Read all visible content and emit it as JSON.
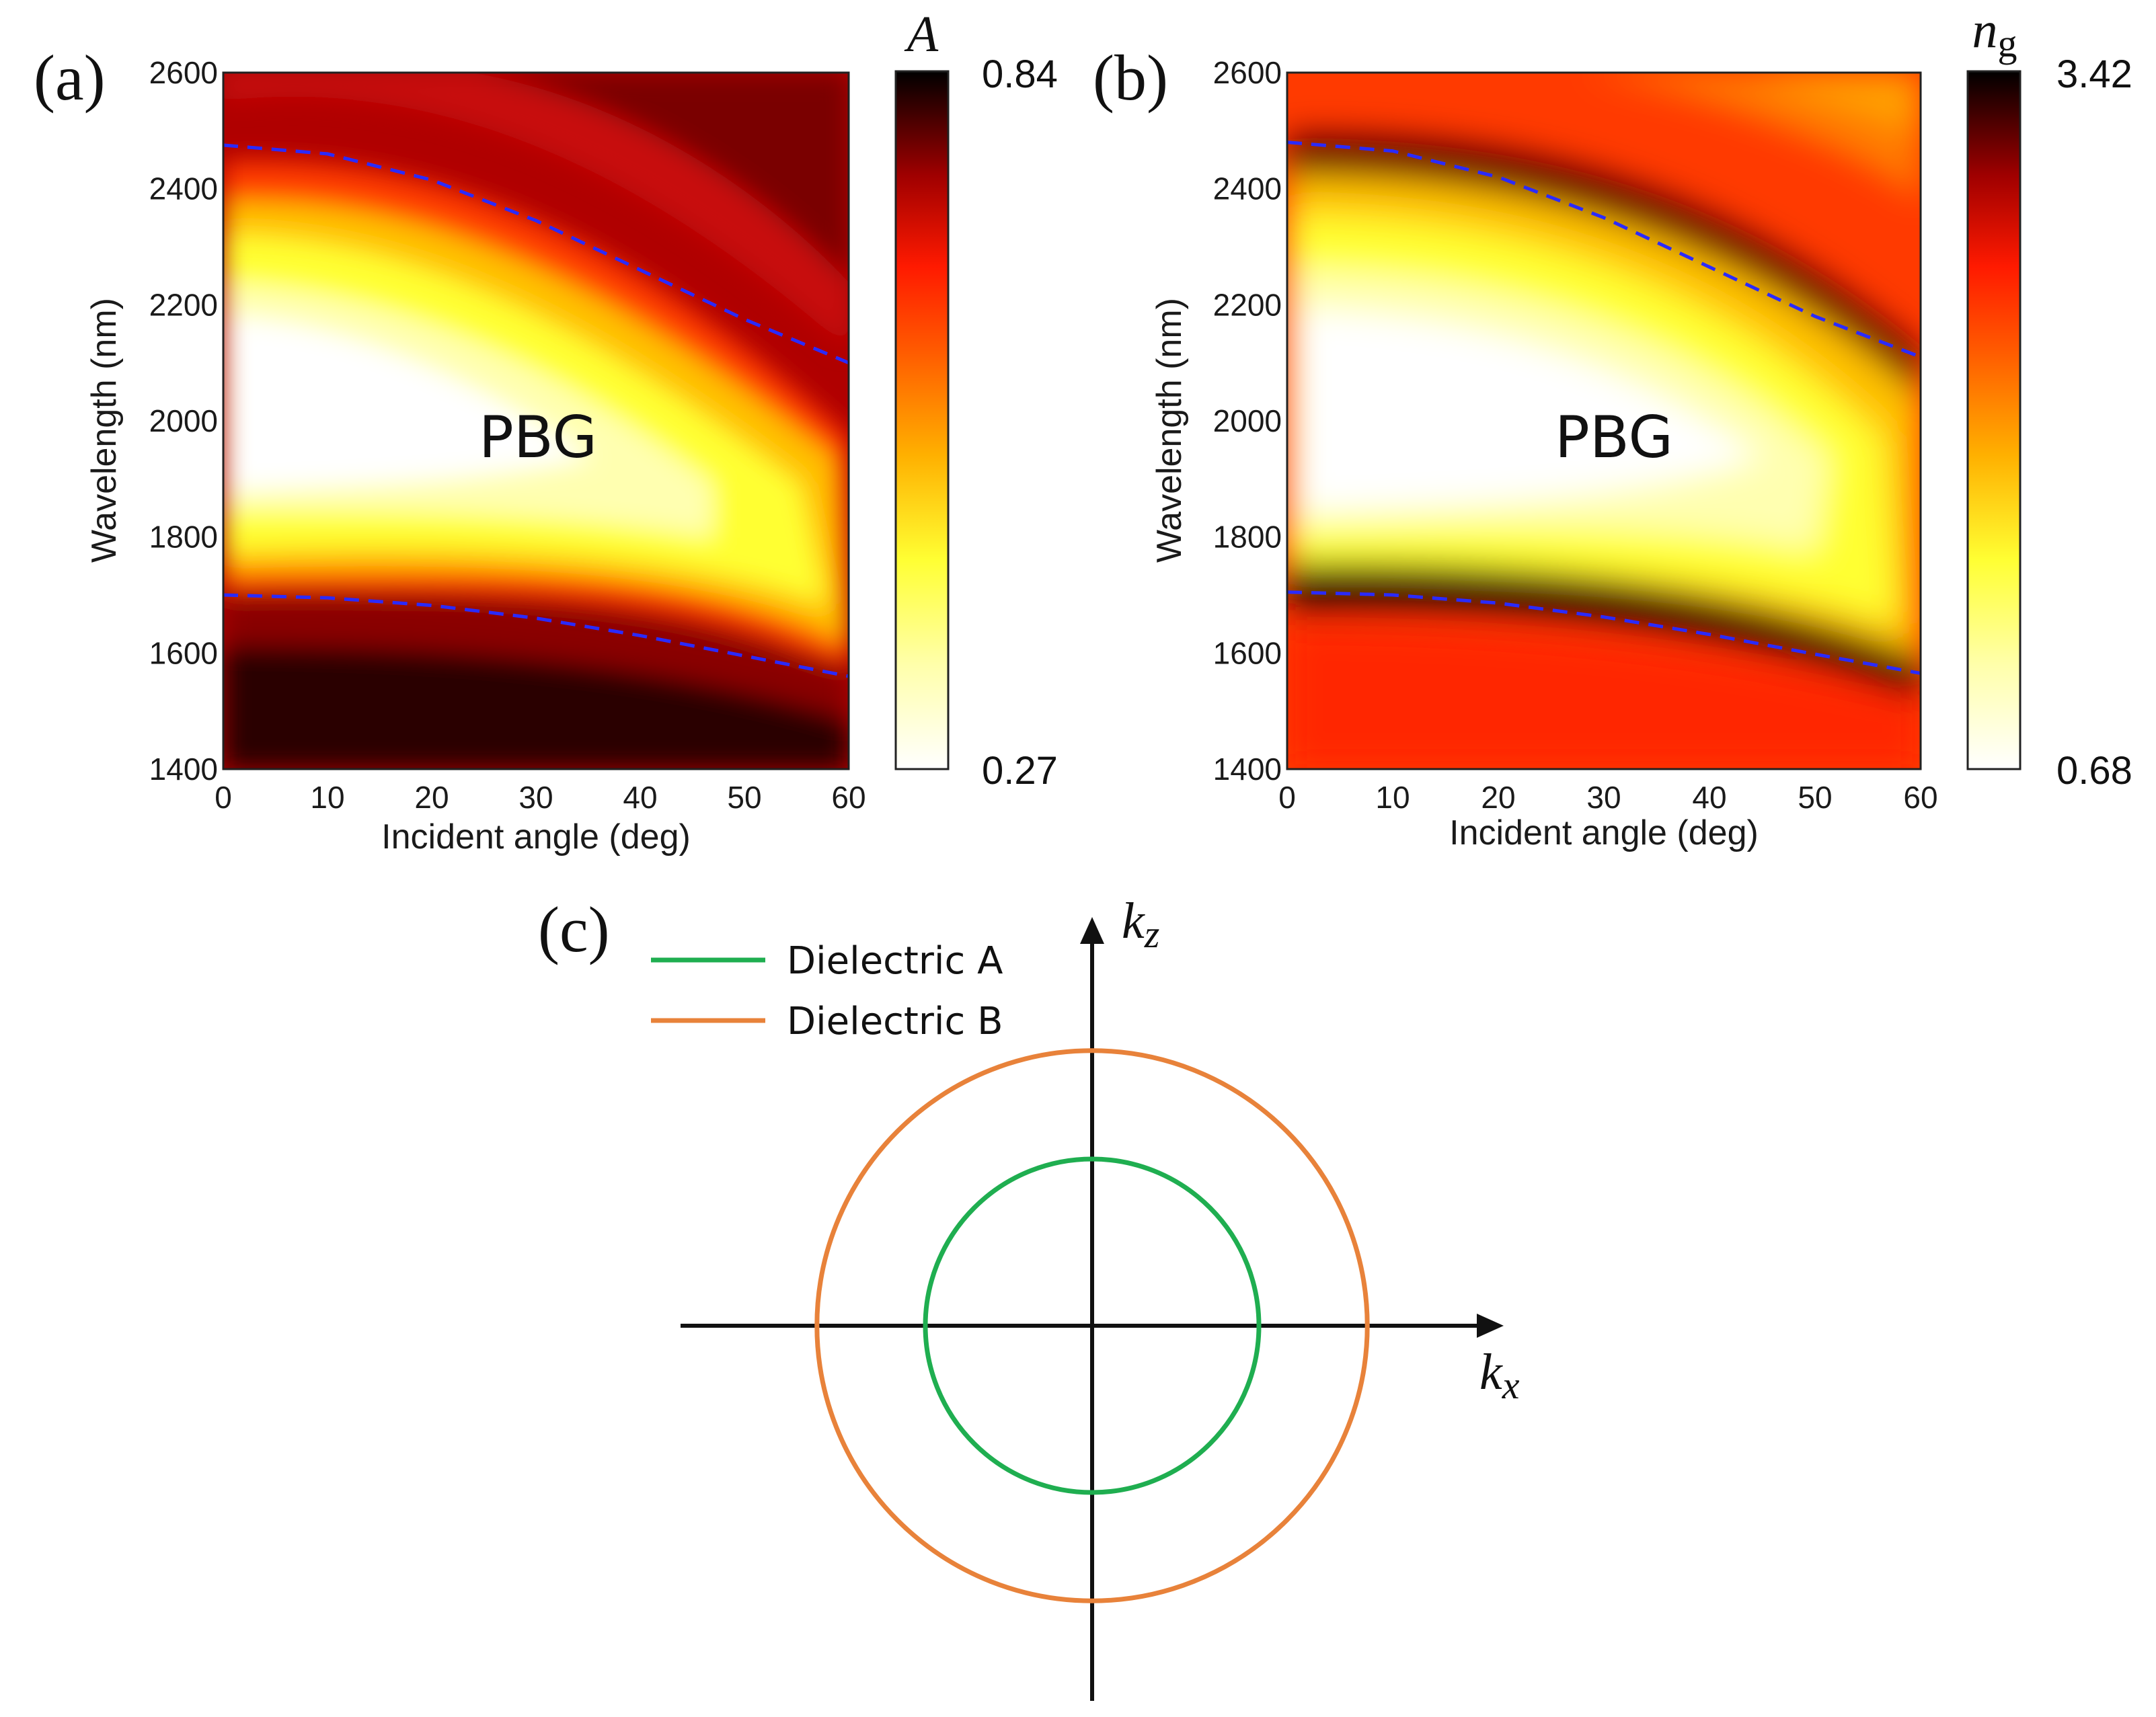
{
  "chart_data": [
    {
      "panel": "(a)",
      "type": "heatmap",
      "title": "",
      "xlabel": "Incident angle (deg)",
      "ylabel": "Wavelength (nm)",
      "xlim": [
        0,
        60
      ],
      "ylim": [
        1400,
        2600
      ],
      "xticks": [
        0,
        10,
        20,
        30,
        40,
        50,
        60
      ],
      "yticks": [
        1400,
        1600,
        1800,
        2000,
        2200,
        2400,
        2600
      ],
      "colorbar": {
        "title": "A",
        "min": 0.27,
        "max": 0.84,
        "min_label": "0.27",
        "max_label": "0.84",
        "colormap": "hot_r"
      },
      "annotation": "PBG",
      "band_edges": [
        {
          "name": "upper band edge",
          "style": "blue-dashed",
          "x": [
            0,
            10,
            20,
            30,
            40,
            50,
            60
          ],
          "y": [
            2475,
            2460,
            2415,
            2345,
            2260,
            2175,
            2100
          ]
        },
        {
          "name": "lower band edge",
          "style": "blue-dashed",
          "x": [
            0,
            10,
            20,
            30,
            40,
            50,
            60
          ],
          "y": [
            1700,
            1695,
            1682,
            1660,
            1630,
            1595,
            1560
          ]
        }
      ]
    },
    {
      "panel": "(b)",
      "type": "heatmap",
      "title": "",
      "xlabel": "Incident angle (deg)",
      "ylabel": "Wavelength (nm)",
      "xlim": [
        0,
        60
      ],
      "ylim": [
        1400,
        2600
      ],
      "xticks": [
        0,
        10,
        20,
        30,
        40,
        50,
        60
      ],
      "yticks": [
        1400,
        1600,
        1800,
        2000,
        2200,
        2400,
        2600
      ],
      "colorbar": {
        "title": "n",
        "title_sub": "g",
        "min": 0.68,
        "max": 3.42,
        "min_label": "0.68",
        "max_label": "3.42",
        "colormap": "hot_r"
      },
      "annotation": "PBG",
      "band_edges": [
        {
          "name": "upper band edge",
          "style": "blue-dashed",
          "x": [
            0,
            10,
            20,
            30,
            40,
            50,
            60
          ],
          "y": [
            2480,
            2465,
            2420,
            2350,
            2265,
            2180,
            2110
          ]
        },
        {
          "name": "lower band edge",
          "style": "blue-dashed",
          "x": [
            0,
            10,
            20,
            30,
            40,
            50,
            60
          ],
          "y": [
            1705,
            1700,
            1686,
            1662,
            1632,
            1598,
            1565
          ]
        }
      ]
    },
    {
      "panel": "(c)",
      "type": "diagram",
      "xlabel": "k",
      "xlabel_sub": "x",
      "ylabel": "k",
      "ylabel_sub": "z",
      "series": [
        {
          "name": "Dielectric A",
          "color": "#1fae50",
          "radius": 1.0
        },
        {
          "name": "Dielectric B",
          "color": "#e8823a",
          "radius": 1.65
        }
      ]
    }
  ]
}
